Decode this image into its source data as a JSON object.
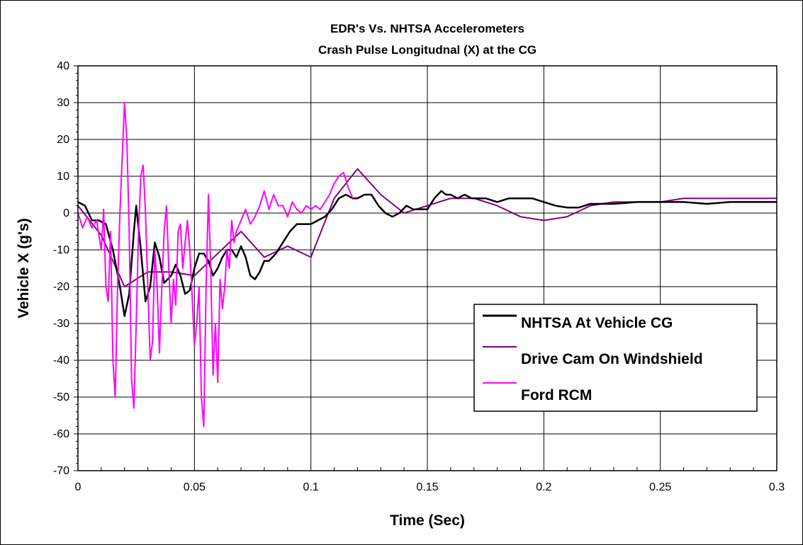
{
  "chart_data": {
    "type": "line",
    "title": "EDR's Vs. NHTSA Accelerometers",
    "subtitle": "Crash Pulse Longitudnal (X) at the CG",
    "xlabel": "Time (Sec)",
    "ylabel": "Vehicle X (g's)",
    "xlim": [
      0,
      0.3
    ],
    "ylim": [
      -70,
      40
    ],
    "xticks": [
      0,
      0.05,
      0.1,
      0.15,
      0.2,
      0.25,
      0.3
    ],
    "xtick_labels": [
      "0",
      "0.05",
      "0.1",
      "0.15",
      "0.2",
      "0.25",
      "0.3"
    ],
    "yticks": [
      40,
      30,
      20,
      10,
      0,
      -10,
      -20,
      -30,
      -40,
      -50,
      -60,
      -70
    ],
    "ytick_labels": [
      "40",
      "30",
      "20",
      "10",
      "0",
      "-10",
      "-20",
      "-30",
      "-40",
      "-50",
      "-60",
      "-70"
    ],
    "grid": true,
    "legend_position": "bottom-right",
    "series": [
      {
        "name": "NHTSA At Vehicle CG",
        "color": "#000000",
        "x": [
          0,
          0.003,
          0.006,
          0.009,
          0.012,
          0.015,
          0.018,
          0.02,
          0.022,
          0.024,
          0.025,
          0.027,
          0.029,
          0.031,
          0.033,
          0.035,
          0.037,
          0.04,
          0.042,
          0.044,
          0.046,
          0.048,
          0.05,
          0.052,
          0.054,
          0.056,
          0.058,
          0.06,
          0.062,
          0.064,
          0.066,
          0.068,
          0.07,
          0.072,
          0.074,
          0.076,
          0.078,
          0.08,
          0.082,
          0.085,
          0.088,
          0.091,
          0.094,
          0.097,
          0.1,
          0.103,
          0.106,
          0.109,
          0.112,
          0.115,
          0.118,
          0.12,
          0.123,
          0.126,
          0.129,
          0.132,
          0.135,
          0.138,
          0.141,
          0.144,
          0.147,
          0.15,
          0.153,
          0.156,
          0.158,
          0.16,
          0.163,
          0.166,
          0.169,
          0.172,
          0.175,
          0.18,
          0.185,
          0.19,
          0.195,
          0.2,
          0.205,
          0.21,
          0.215,
          0.22,
          0.225,
          0.23,
          0.24,
          0.25,
          0.26,
          0.27,
          0.28,
          0.29,
          0.3
        ],
        "y": [
          3,
          2,
          -2,
          -2,
          -3,
          -10,
          -20,
          -28,
          -22,
          -5,
          2,
          -10,
          -24,
          -20,
          -8,
          -12,
          -19,
          -17,
          -14,
          -17,
          -22,
          -21,
          -15,
          -11,
          -11,
          -13,
          -17,
          -15,
          -12,
          -10,
          -10,
          -12,
          -9,
          -12,
          -17,
          -18,
          -16,
          -13,
          -13,
          -11,
          -8,
          -5,
          -3,
          -3,
          -3,
          -2,
          -1,
          1,
          4,
          5,
          4,
          4,
          5,
          5,
          2,
          0,
          -1,
          0,
          2,
          1,
          1,
          1,
          4,
          6,
          5,
          5,
          4,
          5,
          4,
          4,
          4,
          3,
          4,
          4,
          4,
          3,
          2,
          1.5,
          1.5,
          2.5,
          2.5,
          2.5,
          3,
          3,
          3,
          2.5,
          3,
          3,
          3
        ]
      },
      {
        "name": "Drive Cam On Windshield",
        "color": "#800080",
        "x": [
          0,
          0.01,
          0.02,
          0.03,
          0.04,
          0.05,
          0.06,
          0.07,
          0.08,
          0.09,
          0.1,
          0.11,
          0.12,
          0.13,
          0.14,
          0.15,
          0.16,
          0.17,
          0.18,
          0.19,
          0.2,
          0.21,
          0.22,
          0.23,
          0.24,
          0.25,
          0.26,
          0.27,
          0.28,
          0.29,
          0.3
        ],
        "y": [
          2,
          -6,
          -20,
          -16,
          -16,
          -17,
          -11,
          -5,
          -12,
          -9,
          -12,
          4,
          12,
          5,
          0,
          2,
          4,
          4,
          2,
          -1,
          -2,
          -1,
          2,
          3,
          3,
          3,
          4,
          4,
          4,
          4,
          4
        ]
      },
      {
        "name": "Ford RCM",
        "color": "#ff00ff",
        "x": [
          0,
          0.002,
          0.004,
          0.006,
          0.008,
          0.01,
          0.011,
          0.012,
          0.013,
          0.014,
          0.015,
          0.016,
          0.017,
          0.018,
          0.019,
          0.02,
          0.021,
          0.022,
          0.023,
          0.024,
          0.025,
          0.026,
          0.027,
          0.028,
          0.029,
          0.03,
          0.031,
          0.032,
          0.033,
          0.034,
          0.035,
          0.036,
          0.037,
          0.038,
          0.039,
          0.04,
          0.041,
          0.042,
          0.043,
          0.044,
          0.045,
          0.046,
          0.047,
          0.048,
          0.049,
          0.05,
          0.051,
          0.052,
          0.053,
          0.054,
          0.055,
          0.056,
          0.057,
          0.058,
          0.059,
          0.06,
          0.061,
          0.062,
          0.063,
          0.064,
          0.065,
          0.066,
          0.067,
          0.068,
          0.07,
          0.072,
          0.074,
          0.076,
          0.078,
          0.08,
          0.082,
          0.084,
          0.086,
          0.088,
          0.09,
          0.092,
          0.094,
          0.096,
          0.098,
          0.1,
          0.102,
          0.104,
          0.106,
          0.108,
          0.11,
          0.112,
          0.114,
          0.116,
          0.118
        ],
        "y": [
          0,
          -4,
          -1,
          -4,
          -2,
          -10,
          1,
          -20,
          -24,
          -5,
          -40,
          -50,
          -20,
          0,
          15,
          30,
          20,
          -5,
          -45,
          -53,
          -30,
          -5,
          10,
          13,
          0,
          -20,
          -40,
          -35,
          -10,
          -20,
          -38,
          -20,
          -5,
          2,
          -15,
          -30,
          -18,
          -25,
          -5,
          -3,
          -15,
          -8,
          -2,
          -10,
          -22,
          -36,
          -30,
          -20,
          -50,
          -58,
          -20,
          5,
          -15,
          -44,
          -30,
          -46,
          -18,
          -26,
          -20,
          -10,
          -15,
          -2,
          -8,
          -5,
          -2,
          1,
          -3,
          -1,
          2,
          6,
          1,
          5,
          2,
          2,
          -1,
          3,
          1,
          0,
          2,
          1,
          2,
          1,
          3,
          5,
          8,
          10,
          11,
          7,
          4
        ]
      }
    ]
  }
}
